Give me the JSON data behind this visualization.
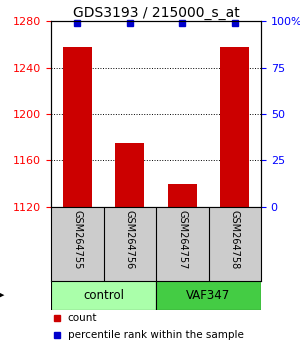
{
  "title": "GDS3193 / 215000_s_at",
  "samples": [
    "GSM264755",
    "GSM264756",
    "GSM264757",
    "GSM264758"
  ],
  "counts": [
    1258,
    1175,
    1140,
    1258
  ],
  "percentile_ranks": [
    99,
    99,
    99,
    99
  ],
  "ylim_left": [
    1120,
    1280
  ],
  "yticks_left": [
    1120,
    1160,
    1200,
    1240,
    1280
  ],
  "ylim_right": [
    0,
    100
  ],
  "yticks_right": [
    0,
    25,
    50,
    75,
    100
  ],
  "ytick_labels_right": [
    "0",
    "25",
    "50",
    "75",
    "100%"
  ],
  "bar_color": "#cc0000",
  "marker_color": "#0000cc",
  "groups": [
    {
      "label": "control",
      "samples": [
        0,
        1
      ],
      "color": "#aaffaa"
    },
    {
      "label": "VAF347",
      "samples": [
        2,
        3
      ],
      "color": "#44cc44"
    }
  ],
  "legend_count_color": "#cc0000",
  "legend_pct_color": "#0000cc",
  "bg_color": "#ffffff",
  "plot_bg_color": "#ffffff",
  "sample_box_color": "#cccccc",
  "title_fontsize": 10,
  "tick_fontsize": 8,
  "bar_width": 0.55
}
